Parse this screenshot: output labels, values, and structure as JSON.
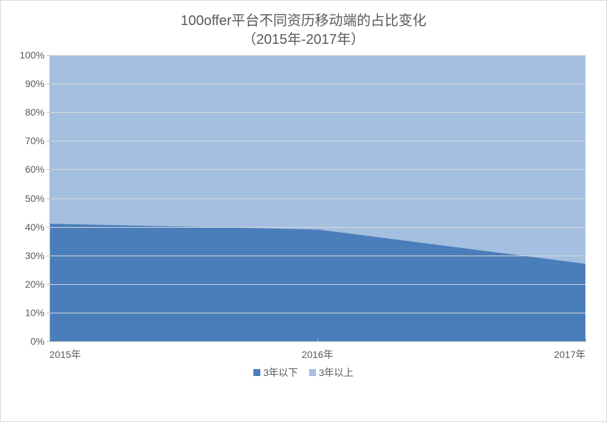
{
  "chart": {
    "type": "stacked-area-100",
    "title_line1": "100offer平台不同资历移动端的占比变化",
    "title_line2": "（2015年-2017年）",
    "title_fontsize": 20,
    "title_color": "#595959",
    "label_fontsize": 14,
    "label_color": "#595959",
    "background_color": "#ffffff",
    "border_color": "#d9d9d9",
    "axis_color": "#bfbfbf",
    "grid_color": "#d9d9d9",
    "ylim": [
      0,
      100
    ],
    "ytick_step": 10,
    "ytick_suffix": "%",
    "x_categories": [
      "2015年",
      "2016年",
      "2017年"
    ],
    "series": [
      {
        "name": "3年以下",
        "color": "#4a7ebb",
        "values": [
          41,
          39,
          27
        ]
      },
      {
        "name": "3年以上",
        "color": "#a5bfe1",
        "values": [
          59,
          61,
          73
        ]
      }
    ],
    "legend_position": "bottom"
  }
}
